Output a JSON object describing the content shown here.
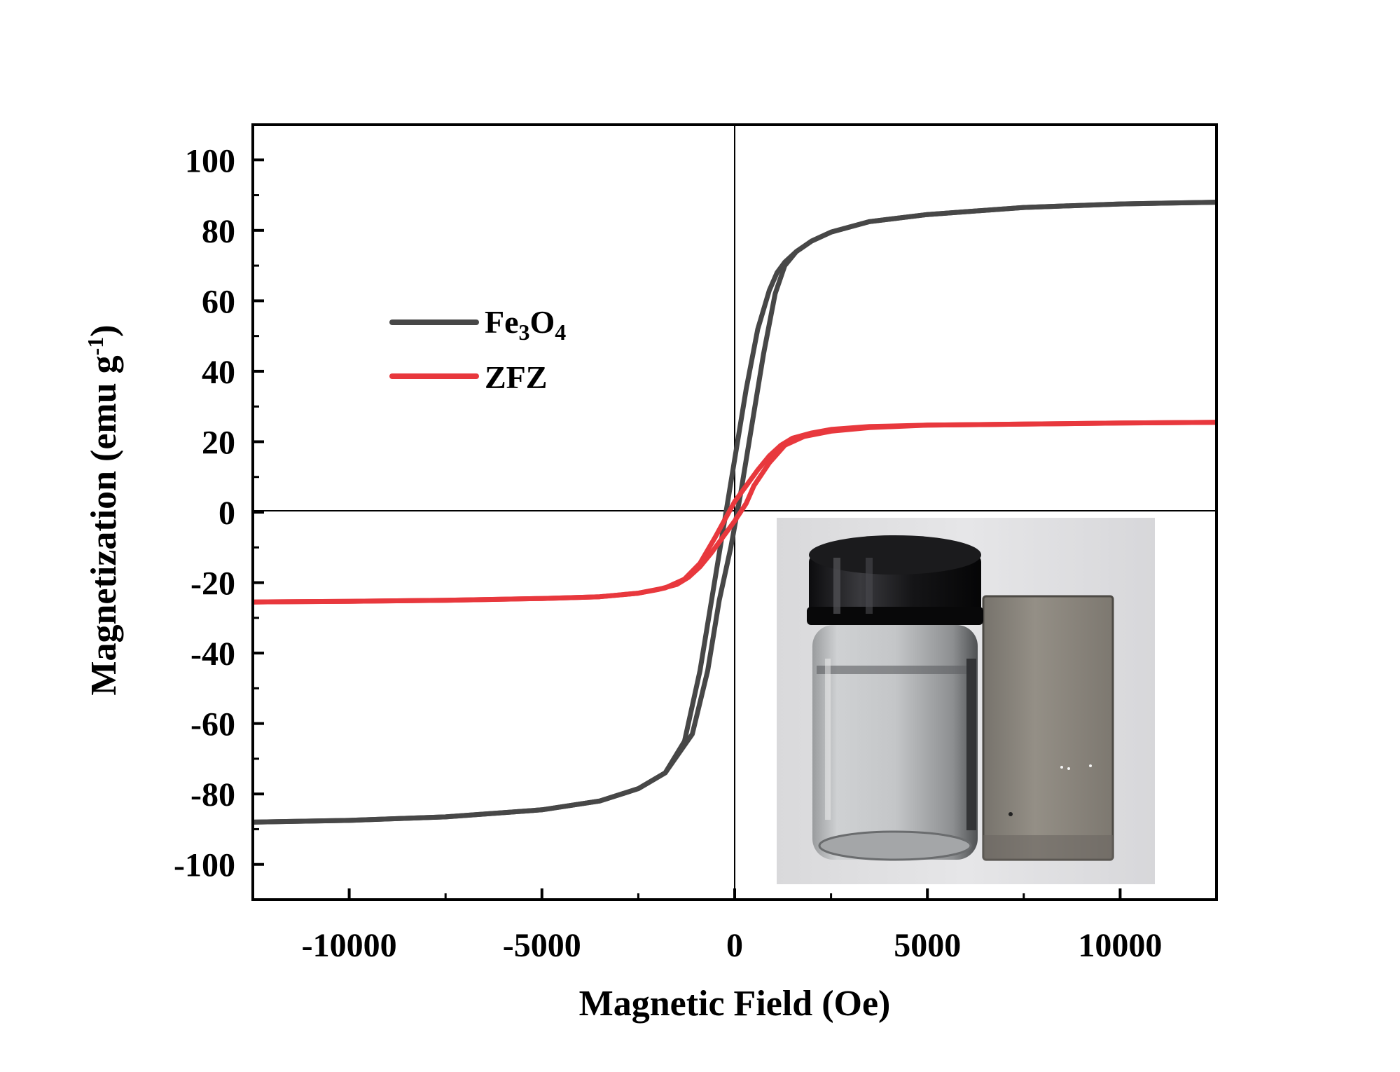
{
  "chart_data": {
    "type": "line",
    "title": "",
    "xlabel": "Magnetic Field (Oe)",
    "ylabel_main": "Magnetization (emu g",
    "ylabel_sup": "-1",
    "ylabel_tail": ")",
    "xlim": [
      -12500,
      12500
    ],
    "ylim": [
      -110,
      110
    ],
    "xticks": [
      -10000,
      -5000,
      0,
      5000,
      10000
    ],
    "xtick_labels": [
      "-10000",
      "-5000",
      "0",
      "5000",
      "10000"
    ],
    "yticks": [
      -100,
      -80,
      -60,
      -40,
      -20,
      0,
      20,
      40,
      60,
      80,
      100
    ],
    "ytick_labels": [
      "-100",
      "-80",
      "-60",
      "-40",
      "-20",
      "0",
      "20",
      "40",
      "60",
      "80",
      "100"
    ],
    "legend": [
      {
        "key": "fe3o4",
        "base": "Fe",
        "sub1": "3",
        "mid": "O",
        "sub2": "4"
      },
      {
        "key": "zfz",
        "base": "ZFZ"
      }
    ],
    "series": [
      {
        "name": "Fe3O4",
        "color": "#474747",
        "loops": [
          {
            "branch": "descending",
            "x": [
              -12500,
              -10000,
              -7500,
              -5000,
              -3500,
              -2500,
              -1800,
              -1300,
              -900,
              -600,
              -300,
              0,
              300,
              600,
              900,
              1100,
              1300,
              1600,
              2000,
              2500,
              3500,
              5000,
              7500,
              10000,
              12500
            ],
            "y": [
              -88,
              -87.5,
              -86.5,
              -84.5,
              -82,
              -78.5,
              -74,
              -65,
              -45,
              -25,
              -5,
              15,
              35,
              52,
              63,
              68,
              71,
              74,
              77,
              79.5,
              82.5,
              84.5,
              86.5,
              87.5,
              88
            ]
          },
          {
            "branch": "ascending",
            "x": [
              -12500,
              -10000,
              -7500,
              -5000,
              -3500,
              -2500,
              -1800,
              -1100,
              -700,
              -400,
              -100,
              150,
              450,
              750,
              1050,
              1300,
              1600,
              2000,
              2500,
              3500,
              5000,
              7500,
              10000,
              12500
            ],
            "y": [
              -88,
              -87.5,
              -86.5,
              -84.5,
              -82,
              -78.5,
              -74,
              -63,
              -45,
              -25,
              -10,
              5,
              25,
              45,
              62,
              70,
              74,
              77,
              79.5,
              82.5,
              84.5,
              86.5,
              87.5,
              88
            ]
          }
        ]
      },
      {
        "name": "ZFZ",
        "color": "#e8383d",
        "loops": [
          {
            "branch": "descending",
            "x": [
              -12500,
              -10000,
              -7500,
              -5000,
              -3500,
              -2500,
              -1800,
              -1300,
              -900,
              -500,
              -300,
              0,
              300,
              600,
              900,
              1200,
              1500,
              2000,
              2500,
              3500,
              5000,
              7500,
              10000,
              12500
            ],
            "y": [
              -25.5,
              -25.3,
              -25,
              -24.5,
              -24,
              -23,
              -21.5,
              -19,
              -14.5,
              -7,
              -3,
              3,
              7.5,
              12,
              16,
              19,
              21,
              22.5,
              23.5,
              24.3,
              24.7,
              25,
              25.3,
              25.5
            ]
          },
          {
            "branch": "ascending",
            "x": [
              -12500,
              -10000,
              -7500,
              -5000,
              -3500,
              -2500,
              -2000,
              -1500,
              -1200,
              -900,
              -600,
              -300,
              0,
              300,
              500,
              900,
              1300,
              1800,
              2500,
              3500,
              5000,
              7500,
              10000,
              12500
            ],
            "y": [
              -25.5,
              -25.3,
              -25,
              -24.5,
              -24,
              -23,
              -22,
              -20.5,
              -18.5,
              -15.5,
              -11.5,
              -7,
              -2.5,
              2.5,
              7.5,
              14,
              19,
              21.5,
              23,
              24,
              24.7,
              25,
              25.3,
              25.5
            ]
          }
        ]
      }
    ]
  },
  "inset_photo": {
    "description_name": "vial-and-magnet-photo"
  }
}
